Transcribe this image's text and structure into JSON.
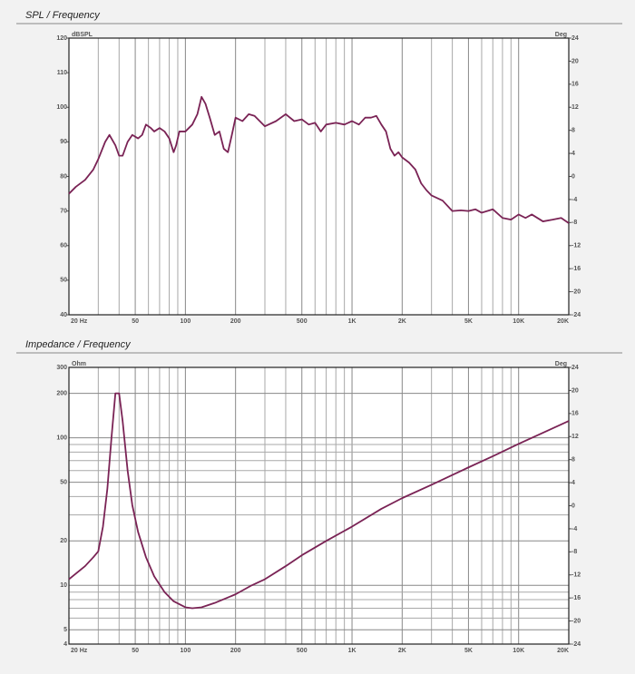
{
  "chart_data": [
    {
      "type": "line",
      "title": "SPL / Frequency",
      "ylabel": "dBSPL",
      "y2label": "Deg",
      "xlog": true,
      "ylog": false,
      "color": "#7a2355",
      "ygrid": false,
      "xlim": [
        20,
        20000
      ],
      "ylim": [
        40,
        120
      ],
      "y2lim": [
        -24,
        24
      ],
      "xticks": [
        {
          "value": 20,
          "label": "20 Hz"
        },
        50,
        100,
        200,
        500,
        {
          "value": 1000,
          "label": "1K"
        },
        {
          "value": 2000,
          "label": "2K"
        },
        {
          "value": 5000,
          "label": "5K"
        },
        {
          "value": 10000,
          "label": "10K"
        },
        {
          "value": 20000,
          "label": "20K"
        }
      ],
      "xminor": [
        30,
        40,
        60,
        70,
        80,
        90,
        300,
        400,
        600,
        700,
        800,
        900,
        3000,
        4000,
        6000,
        7000,
        8000,
        9000
      ],
      "yticks": [
        40,
        50,
        60,
        70,
        80,
        90,
        100,
        110,
        120
      ],
      "y2ticks": [
        -24,
        -20,
        -16,
        -12,
        -8,
        -4,
        0,
        4,
        8,
        12,
        16,
        20,
        24
      ],
      "x": [
        20,
        22,
        25,
        28,
        30,
        33,
        35,
        38,
        40,
        42,
        45,
        48,
        52,
        55,
        58,
        62,
        65,
        70,
        75,
        80,
        85,
        88,
        92,
        100,
        110,
        118,
        125,
        132,
        140,
        150,
        160,
        170,
        180,
        190,
        200,
        220,
        240,
        260,
        300,
        350,
        400,
        450,
        500,
        550,
        600,
        650,
        700,
        800,
        900,
        1000,
        1100,
        1200,
        1300,
        1400,
        1500,
        1600,
        1700,
        1800,
        1900,
        2000,
        2200,
        2400,
        2600,
        2800,
        3000,
        3500,
        4000,
        4500,
        5000,
        5500,
        6000,
        7000,
        8000,
        9000,
        10000,
        11000,
        12000,
        14000,
        16000,
        18000,
        20000
      ],
      "values": [
        75,
        77,
        79,
        82,
        85,
        90,
        92,
        89,
        86,
        86,
        90,
        92,
        91,
        92,
        95,
        94,
        93,
        94,
        93,
        91,
        87,
        89,
        93,
        93,
        95,
        98,
        103,
        101,
        97,
        92,
        93,
        88,
        87,
        92,
        97,
        96,
        98,
        97.5,
        94.5,
        96,
        98,
        96,
        96.5,
        95,
        95.5,
        93,
        95,
        95.5,
        95,
        96,
        95,
        97,
        97,
        97.5,
        95,
        93,
        88,
        86,
        87,
        85.5,
        84,
        82,
        78,
        76,
        74.5,
        73,
        70,
        70.2,
        70,
        70.5,
        69.5,
        70.5,
        68,
        67.5,
        69,
        68,
        69,
        67,
        67.5,
        68,
        66.5
      ]
    },
    {
      "type": "line",
      "title": "Impedance / Frequency",
      "ylabel": "Ohm",
      "y2label": "Deg",
      "xlog": true,
      "ylog": true,
      "color": "#7a2355",
      "ygrid": true,
      "xlim": [
        20,
        20000
      ],
      "ylim": [
        4,
        300
      ],
      "y2lim": [
        -24,
        24
      ],
      "xticks": [
        {
          "value": 20,
          "label": "20 Hz"
        },
        50,
        100,
        200,
        500,
        {
          "value": 1000,
          "label": "1K"
        },
        {
          "value": 2000,
          "label": "2K"
        },
        {
          "value": 5000,
          "label": "5K"
        },
        {
          "value": 10000,
          "label": "10K"
        },
        {
          "value": 20000,
          "label": "20K"
        }
      ],
      "xminor": [
        30,
        40,
        60,
        70,
        80,
        90,
        300,
        400,
        600,
        700,
        800,
        900,
        3000,
        4000,
        6000,
        7000,
        8000,
        9000
      ],
      "yticks": [
        4,
        5,
        10,
        20,
        50,
        100,
        200,
        300
      ],
      "yminor": [
        6,
        7,
        8,
        9,
        30,
        40,
        60,
        70,
        80,
        90
      ],
      "y2ticks": [
        -24,
        -20,
        -16,
        -12,
        -8,
        -4,
        0,
        4,
        8,
        12,
        16,
        20,
        24
      ],
      "x": [
        20,
        25,
        28,
        30,
        32,
        34,
        36,
        38,
        40,
        42,
        45,
        48,
        52,
        58,
        65,
        75,
        85,
        100,
        110,
        125,
        150,
        200,
        250,
        300,
        400,
        500,
        700,
        1000,
        1500,
        2000,
        3000,
        5000,
        7000,
        10000,
        15000,
        20000
      ],
      "values": [
        11,
        13.5,
        15.5,
        17,
        25,
        45,
        100,
        200,
        200,
        130,
        60,
        35,
        23,
        15.5,
        11.5,
        9,
        7.8,
        7.1,
        7,
        7.1,
        7.6,
        8.7,
        10,
        11,
        13.5,
        16,
        20,
        25,
        33,
        39,
        48,
        63,
        75,
        91,
        112,
        130
      ]
    }
  ]
}
